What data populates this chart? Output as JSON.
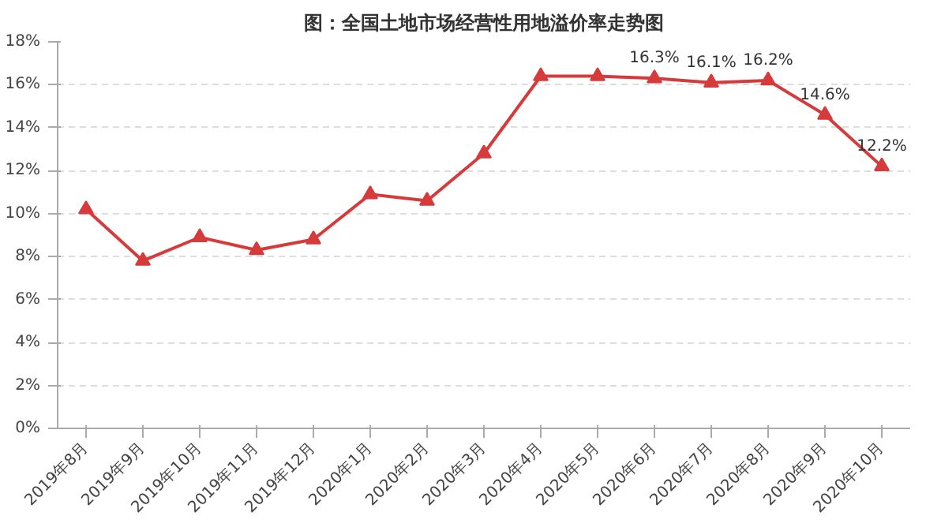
{
  "chart_data": {
    "type": "line",
    "title": "图：全国土地市场经营性用地溢价率走势图",
    "categories": [
      "2019年8月",
      "2019年9月",
      "2019年10月",
      "2019年11月",
      "2019年12月",
      "2020年1月",
      "2020年2月",
      "2020年3月",
      "2020年4月",
      "2020年5月",
      "2020年6月",
      "2020年7月",
      "2020年8月",
      "2020年9月",
      "2020年10月"
    ],
    "series": [
      {
        "color": "#d63a3a",
        "values": [
          10.2,
          7.8,
          8.9,
          8.3,
          8.8,
          10.9,
          10.6,
          12.8,
          16.4,
          16.4,
          16.3,
          16.1,
          16.2,
          14.6,
          12.2
        ],
        "value_labels": [
          null,
          null,
          null,
          null,
          null,
          null,
          null,
          null,
          null,
          null,
          "16.3%",
          "16.1%",
          "16.2%",
          "14.6%",
          "12.2%"
        ]
      }
    ],
    "ylim": [
      0,
      18
    ],
    "yticks": [
      {
        "value": 0,
        "label": "0%"
      },
      {
        "value": 2,
        "label": "2%"
      },
      {
        "value": 4,
        "label": "4%"
      },
      {
        "value": 6,
        "label": "6%"
      },
      {
        "value": 8,
        "label": "8%"
      },
      {
        "value": 10,
        "label": "10%"
      },
      {
        "value": 12,
        "label": "12%"
      },
      {
        "value": 14,
        "label": "14%"
      },
      {
        "value": 16,
        "label": "16%"
      },
      {
        "value": 18,
        "label": "18%"
      }
    ],
    "grid": "y",
    "marker": "triangle",
    "line_style": "solid"
  }
}
